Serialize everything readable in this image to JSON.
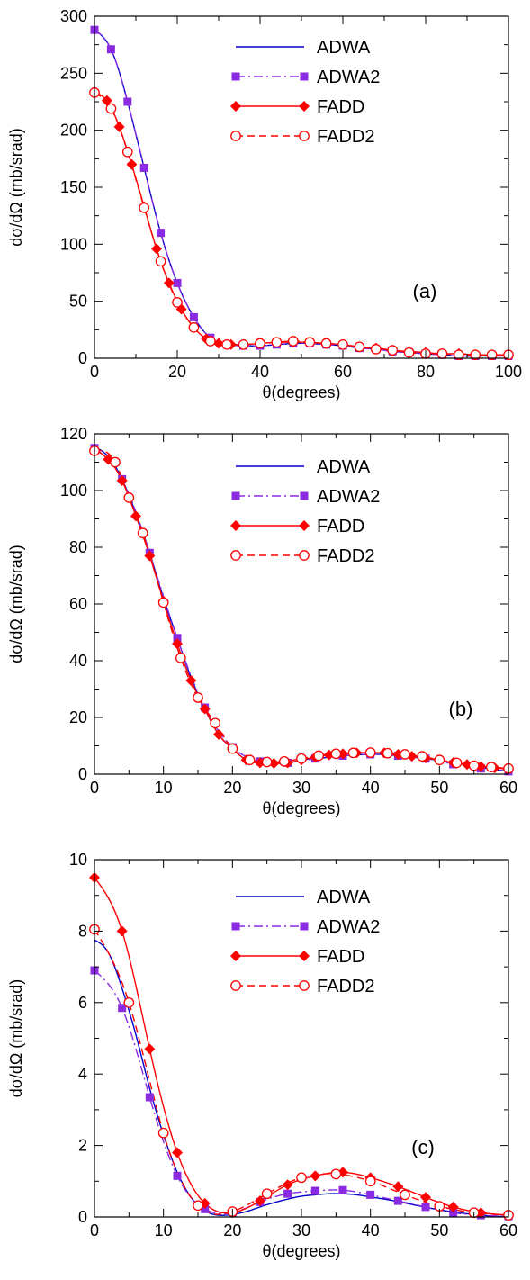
{
  "chart_data": [
    {
      "type": "line",
      "panel_label": "(a)",
      "xlabel": "θ(degrees)",
      "ylabel": "dσ/dΩ (mb/srad)",
      "xlim": [
        0,
        100
      ],
      "ylim": [
        0,
        300
      ],
      "xticks": [
        0,
        20,
        40,
        60,
        80,
        100
      ],
      "yticks": [
        0,
        50,
        100,
        150,
        200,
        250,
        300
      ],
      "legend_position": "top-right",
      "series": [
        {
          "name": "ADWA",
          "color": "#0000cc",
          "dash": "solid",
          "marker": "none",
          "x": [
            0,
            4,
            8,
            12,
            16,
            20,
            24,
            28,
            32,
            36,
            40,
            44,
            48,
            52,
            56,
            60,
            64,
            68,
            72,
            76,
            80,
            84,
            88,
            92,
            96,
            100
          ],
          "y": [
            288,
            271,
            225,
            167,
            110,
            66,
            36,
            18,
            12,
            11,
            11,
            12,
            13,
            13,
            12,
            11,
            9,
            8,
            6,
            5,
            4,
            3,
            2,
            2,
            2,
            2
          ]
        },
        {
          "name": "ADWA2",
          "color": "#8a2be2",
          "dash": "dashdot",
          "marker": "square",
          "x": [
            0,
            4,
            8,
            12,
            16,
            20,
            24,
            28,
            32,
            36,
            40,
            44,
            48,
            52,
            56,
            60,
            64,
            68,
            72,
            76,
            80,
            84,
            88,
            92,
            96,
            100
          ],
          "y": [
            288,
            271,
            225,
            167,
            110,
            66,
            36,
            18,
            12,
            11,
            11,
            12,
            13,
            13,
            12,
            11,
            9,
            8,
            6,
            5,
            4,
            3,
            2,
            2,
            2,
            2
          ]
        },
        {
          "name": "FADD",
          "color": "#ff0000",
          "dash": "solid",
          "marker": "diamond",
          "x": [
            0,
            3,
            6,
            9,
            12,
            15,
            18,
            21,
            24,
            27,
            30,
            33,
            36,
            40,
            44,
            48,
            52,
            56,
            60,
            64,
            68,
            72,
            76,
            80,
            84,
            88,
            92,
            96,
            100
          ],
          "y": [
            233,
            226,
            203,
            170,
            133,
            96,
            66,
            43,
            27,
            17,
            13,
            12,
            12,
            13,
            14,
            14,
            14,
            13,
            12,
            10,
            9,
            7,
            6,
            5,
            4,
            4,
            3,
            3,
            3
          ]
        },
        {
          "name": "FADD2",
          "color": "#ff0000",
          "dash": "dashed",
          "marker": "circle",
          "x": [
            0,
            4,
            8,
            12,
            16,
            20,
            24,
            28,
            32,
            36,
            40,
            44,
            48,
            52,
            56,
            60,
            64,
            68,
            72,
            76,
            80,
            84,
            88,
            92,
            96,
            100
          ],
          "y": [
            233,
            219,
            181,
            132,
            85,
            49,
            27,
            15,
            12,
            12,
            13,
            14,
            15,
            14,
            13,
            12,
            10,
            8,
            7,
            5,
            4,
            4,
            3,
            3,
            3,
            3
          ]
        }
      ]
    },
    {
      "type": "line",
      "panel_label": "(b)",
      "xlabel": "θ(degrees)",
      "ylabel": "dσ/dΩ (mb/srad)",
      "xlim": [
        0,
        60
      ],
      "ylim": [
        0,
        120
      ],
      "xticks": [
        0,
        10,
        20,
        30,
        40,
        50,
        60
      ],
      "yticks": [
        0,
        20,
        40,
        60,
        80,
        100,
        120
      ],
      "legend_position": "top-right",
      "series": [
        {
          "name": "ADWA",
          "color": "#0000cc",
          "dash": "solid",
          "marker": "none",
          "x": [
            0,
            2,
            4,
            6,
            8,
            10,
            12,
            14,
            16,
            18,
            20,
            22,
            24,
            26,
            28,
            30,
            32,
            34,
            36,
            38,
            40,
            42,
            44,
            46,
            48,
            50,
            52,
            54,
            56,
            58,
            60
          ],
          "y": [
            115.5,
            112,
            104,
            92,
            78,
            62,
            48,
            34,
            23,
            14,
            9,
            5,
            4,
            4,
            4,
            5,
            5.5,
            6,
            6.5,
            6.8,
            7,
            6.9,
            6.5,
            6,
            5.5,
            4.8,
            4,
            3.2,
            2.4,
            1.6,
            1
          ]
        },
        {
          "name": "ADWA2",
          "color": "#8a2be2",
          "dash": "dashdot",
          "marker": "square",
          "x": [
            0,
            4,
            8,
            12,
            16,
            20,
            24,
            28,
            32,
            36,
            40,
            44,
            48,
            52,
            56,
            60
          ],
          "y": [
            115,
            104,
            78,
            48,
            23.5,
            9.5,
            4.5,
            4,
            5.5,
            6.5,
            7,
            6.5,
            5.5,
            3.5,
            2,
            1
          ]
        },
        {
          "name": "FADD",
          "color": "#ff0000",
          "dash": "solid",
          "marker": "diamond",
          "x": [
            0,
            2,
            4,
            6,
            8,
            10,
            12,
            14,
            16,
            18,
            20,
            22,
            24,
            26,
            28,
            30,
            32,
            34,
            36,
            38,
            40,
            42,
            44,
            46,
            48,
            50,
            52,
            54,
            56,
            58,
            60
          ],
          "y": [
            114.5,
            111,
            103.5,
            91,
            77,
            61,
            46,
            33,
            23,
            14,
            9,
            5,
            4,
            3.8,
            4,
            5,
            6,
            6.8,
            7.2,
            7.5,
            7.6,
            7.5,
            7,
            6.3,
            5.7,
            4.9,
            4.1,
            3.4,
            2.7,
            2.2,
            1.8
          ]
        },
        {
          "name": "FADD2",
          "color": "#ff0000",
          "dash": "dashed",
          "marker": "circle",
          "x": [
            0,
            3,
            5,
            7,
            10,
            12.5,
            15,
            17.5,
            20,
            22.5,
            25,
            27.5,
            30,
            32.5,
            35,
            37.5,
            40,
            42.5,
            45,
            47.5,
            50,
            52.5,
            55,
            57.5,
            60
          ],
          "y": [
            114,
            110,
            97.5,
            85,
            60.5,
            41,
            27,
            18,
            9,
            5,
            4.3,
            4.5,
            5.5,
            6.5,
            7.2,
            7.5,
            7.6,
            7.4,
            7,
            6.3,
            5,
            4,
            3,
            2.5,
            2
          ]
        }
      ]
    },
    {
      "type": "line",
      "panel_label": "(c)",
      "xlabel": "θ(degrees)",
      "ylabel": "dσ/dΩ (mb/srad)",
      "xlim": [
        0,
        60
      ],
      "ylim": [
        0,
        10
      ],
      "xticks": [
        0,
        10,
        20,
        30,
        40,
        50,
        60
      ],
      "yticks": [
        0,
        2,
        4,
        6,
        8,
        10
      ],
      "legend_position": "top-right",
      "series": [
        {
          "name": "ADWA",
          "color": "#0000cc",
          "dash": "solid",
          "marker": "none",
          "x": [
            0,
            2,
            4,
            6,
            8,
            10,
            12,
            14,
            16,
            18,
            20,
            22,
            24,
            26,
            28,
            30,
            32,
            34,
            36,
            38,
            40,
            42,
            44,
            46,
            48,
            50,
            52,
            54,
            56,
            58,
            60
          ],
          "y": [
            7.75,
            7.4,
            6.4,
            5.1,
            3.6,
            2.3,
            1.25,
            0.55,
            0.17,
            0.05,
            0.07,
            0.15,
            0.28,
            0.4,
            0.5,
            0.58,
            0.62,
            0.65,
            0.65,
            0.62,
            0.56,
            0.5,
            0.43,
            0.35,
            0.27,
            0.2,
            0.14,
            0.09,
            0.05,
            0.02,
            0.01
          ]
        },
        {
          "name": "ADWA2",
          "color": "#8a2be2",
          "dash": "dashdot",
          "marker": "square",
          "x": [
            0,
            4,
            8,
            12,
            16,
            20,
            24,
            28,
            32,
            36,
            40,
            44,
            48,
            52,
            56,
            60
          ],
          "y": [
            6.9,
            5.85,
            3.35,
            1.15,
            0.22,
            0.12,
            0.42,
            0.65,
            0.73,
            0.75,
            0.62,
            0.45,
            0.28,
            0.12,
            0.05,
            0.02
          ]
        },
        {
          "name": "FADD",
          "color": "#ff0000",
          "dash": "solid",
          "marker": "diamond",
          "x": [
            0,
            4,
            8,
            12,
            16,
            20,
            24,
            28,
            32,
            36,
            40,
            44,
            48,
            52,
            56,
            60
          ],
          "y": [
            9.5,
            8,
            4.7,
            1.8,
            0.38,
            0.12,
            0.45,
            0.9,
            1.15,
            1.25,
            1.1,
            0.85,
            0.55,
            0.28,
            0.12,
            0.05
          ]
        },
        {
          "name": "FADD2",
          "color": "#ff0000",
          "dash": "dashed",
          "marker": "circle",
          "x": [
            0,
            5,
            10,
            15,
            20,
            25,
            30,
            35,
            40,
            45,
            50,
            55,
            60
          ],
          "y": [
            8.05,
            6,
            2.35,
            0.32,
            0.15,
            0.65,
            1.1,
            1.2,
            1,
            0.62,
            0.3,
            0.12,
            0.05
          ]
        }
      ]
    }
  ]
}
